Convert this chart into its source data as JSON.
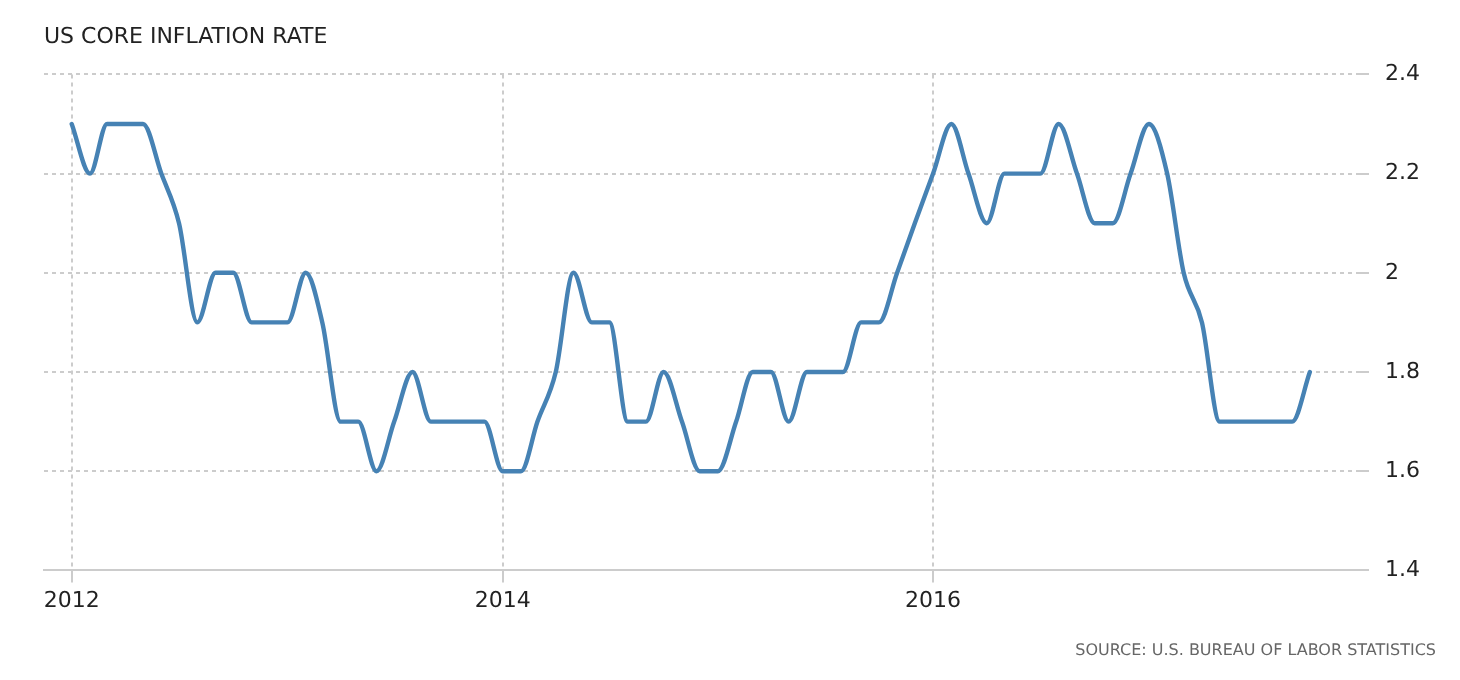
{
  "chart_data": {
    "type": "line",
    "title": "US CORE INFLATION RATE",
    "annotations": [
      "SOURCE: U.S. BUREAU OF LABOR STATISTICS"
    ],
    "x": [
      "2012-01",
      "2012-02",
      "2012-03",
      "2012-04",
      "2012-05",
      "2012-06",
      "2012-07",
      "2012-08",
      "2012-09",
      "2012-10",
      "2012-11",
      "2012-12",
      "2013-01",
      "2013-02",
      "2013-03",
      "2013-04",
      "2013-05",
      "2013-06",
      "2013-07",
      "2013-08",
      "2013-09",
      "2013-10",
      "2013-11",
      "2013-12",
      "2014-01",
      "2014-02",
      "2014-03",
      "2014-04",
      "2014-05",
      "2014-06",
      "2014-07",
      "2014-08",
      "2014-09",
      "2014-10",
      "2014-11",
      "2014-12",
      "2015-01",
      "2015-02",
      "2015-03",
      "2015-04",
      "2015-05",
      "2015-06",
      "2015-07",
      "2015-08",
      "2015-09",
      "2015-10",
      "2015-11",
      "2015-12",
      "2016-01",
      "2016-02",
      "2016-03",
      "2016-04",
      "2016-05",
      "2016-06",
      "2016-07",
      "2016-08",
      "2016-09",
      "2016-10",
      "2016-11",
      "2016-12",
      "2017-01",
      "2017-02",
      "2017-03",
      "2017-04",
      "2017-05",
      "2017-06",
      "2017-07",
      "2017-08",
      "2017-09",
      "2017-10"
    ],
    "series": [
      {
        "color": "#4682b4",
        "values": [
          2.3,
          2.2,
          2.3,
          2.3,
          2.3,
          2.2,
          2.1,
          1.9,
          2.0,
          2.0,
          1.9,
          1.9,
          1.9,
          2.0,
          1.9,
          1.7,
          1.7,
          1.6,
          1.7,
          1.8,
          1.7,
          1.7,
          1.7,
          1.7,
          1.6,
          1.6,
          1.7,
          1.8,
          2.0,
          1.9,
          1.9,
          1.7,
          1.7,
          1.8,
          1.7,
          1.6,
          1.6,
          1.7,
          1.8,
          1.8,
          1.7,
          1.8,
          1.8,
          1.8,
          1.9,
          1.9,
          2.0,
          2.1,
          2.2,
          2.3,
          2.2,
          2.1,
          2.2,
          2.2,
          2.2,
          2.3,
          2.2,
          2.1,
          2.1,
          2.2,
          2.3,
          2.2,
          2.0,
          1.9,
          1.7,
          1.7,
          1.7,
          1.7,
          1.7,
          1.8
        ]
      }
    ],
    "xlim": [
      "2011-11-15",
      "2017-12-20"
    ],
    "xticks": [
      {
        "value": "2012",
        "label": "2012"
      },
      {
        "value": "2014",
        "label": "2014"
      },
      {
        "value": "2016",
        "label": "2016"
      }
    ],
    "ylim": [
      1.4,
      2.4
    ],
    "yticks": [
      1.4,
      1.6,
      1.8,
      {
        "value": 2,
        "label": "2"
      },
      2.2,
      2.4
    ],
    "grid": true,
    "legend": false,
    "marker": "none",
    "line_style": "solid"
  }
}
